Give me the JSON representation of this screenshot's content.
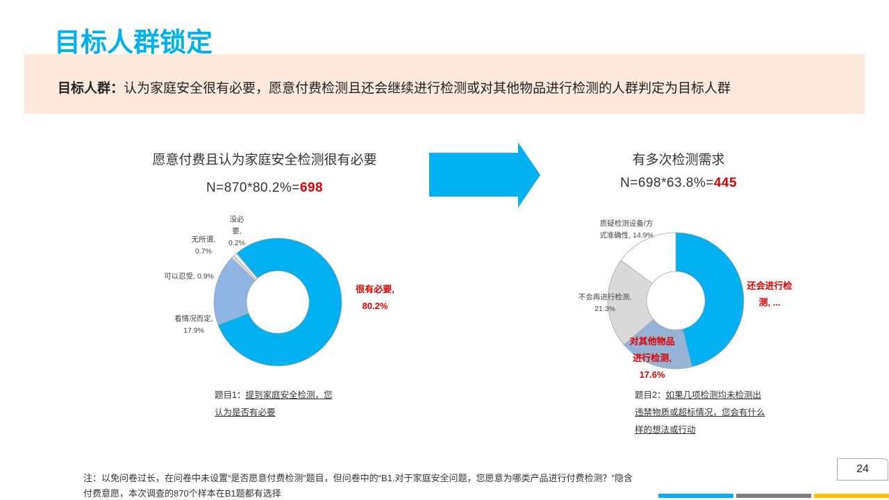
{
  "header": {
    "title": "目标人群锁定"
  },
  "banner": {
    "label": "目标人群：",
    "text": "认为家庭安全很有必要，愿意付费检测且还会继续进行检测或对其他物品进行检测的人群判定为目标人群"
  },
  "left": {
    "heading": "愿意付费且认为家庭安全检测很有必要",
    "formula": "N=870*80.2%=",
    "result": "698",
    "question_label": "题目1：",
    "question": "提到家庭安全检测，您认为是否有必要"
  },
  "right": {
    "heading": "有多次检测需求",
    "formula": "N=698*63.8%=",
    "result": "445",
    "question_label": "题目2：",
    "question": "如果几项检测均未检测出违禁物质或超标情况，您会有什么样的想法或行动"
  },
  "chart_data": [
    {
      "type": "donut",
      "categories": [
        "很有必要",
        "看情况而定",
        "可以忍受",
        "无所谓",
        "没必要"
      ],
      "values": [
        80.2,
        17.9,
        0.9,
        0.7,
        0.2
      ],
      "value_labels": [
        "80.2%",
        "17.9%",
        "0.9%",
        "0.7%",
        "0.2%"
      ],
      "colors": [
        "#00b0f0",
        "#8eb4e3",
        "#d9d9d9",
        "#ffffff",
        "#ffffff"
      ]
    },
    {
      "type": "donut",
      "categories": [
        "还会进行检测",
        "对其他物品进行检测",
        "不会再进行检测",
        "质疑检测设备/方式准确性"
      ],
      "values": [
        46.2,
        17.6,
        21.3,
        14.9
      ],
      "value_labels": [
        "...",
        "17.6%",
        "21.3%",
        "14.9%"
      ],
      "colors": [
        "#00b0f0",
        "#95b3d7",
        "#d9d9d9",
        "#ffffff"
      ]
    }
  ],
  "footnote": "注：以免问卷过长，在问卷中未设置“是否愿意付费检测”题目，但问卷中的“B1.对于家庭安全问题，您愿意为哪类产品进行付费检测？”隐含付费意愿，本次调查的870个样本在B1题都有选择",
  "page_number": "24"
}
